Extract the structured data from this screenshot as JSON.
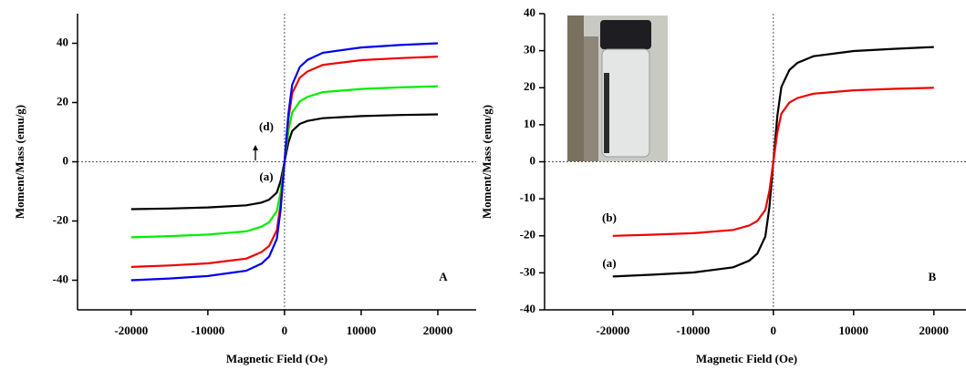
{
  "chart_data": [
    {
      "type": "line",
      "xlabel": "Magnetic Field (Oe)",
      "ylabel": "Moment/Mass (emu/g)",
      "x": [
        -20000,
        -15000,
        -10000,
        -5000,
        -3000,
        -2000,
        -1000,
        -500,
        0,
        500,
        1000,
        2000,
        3000,
        5000,
        10000,
        15000,
        20000
      ],
      "series": [
        {
          "color": "#000000",
          "values": [
            -16,
            -15.8,
            -15.4,
            -14.7,
            -13.8,
            -12.8,
            -10.4,
            -6.4,
            0,
            6.4,
            10.4,
            12.8,
            13.8,
            14.7,
            15.4,
            15.8,
            16
          ]
        },
        {
          "color": "#00ee00",
          "values": [
            -25.5,
            -25.1,
            -24.6,
            -23.5,
            -21.9,
            -20.4,
            -16.6,
            -10.2,
            0,
            10.2,
            16.6,
            20.4,
            21.9,
            23.5,
            24.6,
            25.1,
            25.5
          ]
        },
        {
          "color": "#ee0000",
          "values": [
            -35.5,
            -35,
            -34.3,
            -32.7,
            -30.5,
            -28.4,
            -23.1,
            -14.2,
            0,
            14.2,
            23.1,
            28.4,
            30.5,
            32.7,
            34.3,
            35,
            35.5
          ]
        },
        {
          "color": "#0000ee",
          "values": [
            -40,
            -39.4,
            -38.6,
            -36.8,
            -34.4,
            -32,
            -26,
            -16,
            0,
            16,
            26,
            32,
            34.4,
            36.8,
            38.6,
            39.4,
            40
          ]
        }
      ],
      "xlim": [
        -27000,
        25000
      ],
      "xticks": [
        -20000,
        -10000,
        0,
        10000,
        20000
      ],
      "ylim": [
        -50,
        50
      ],
      "yticks": [
        -40,
        -20,
        0,
        20,
        40
      ],
      "annotations": [
        "(d)",
        "(a)",
        "A"
      ]
    },
    {
      "type": "line",
      "xlabel": "Magnetic Field (Oe)",
      "ylabel": "Moment/Mass (emu/g)",
      "x": [
        -20000,
        -15000,
        -10000,
        -5000,
        -3000,
        -2000,
        -1000,
        -500,
        0,
        500,
        1000,
        2000,
        3000,
        5000,
        10000,
        15000,
        20000
      ],
      "series": [
        {
          "color": "#000000",
          "values": [
            -31,
            -30.5,
            -29.9,
            -28.5,
            -26.7,
            -24.8,
            -20.2,
            -12.4,
            0,
            12.4,
            20.2,
            24.8,
            26.7,
            28.5,
            29.9,
            30.5,
            31
          ]
        },
        {
          "color": "#ee0000",
          "values": [
            -20,
            -19.7,
            -19.3,
            -18.4,
            -17.2,
            -16,
            -13,
            -8,
            0,
            8,
            13,
            16,
            17.2,
            18.4,
            19.3,
            19.7,
            20
          ]
        }
      ],
      "xlim": [
        -28500,
        24000
      ],
      "xticks": [
        -20000,
        -10000,
        0,
        10000,
        20000
      ],
      "ylim": [
        -40,
        40
      ],
      "yticks": [
        -40,
        -30,
        -20,
        -10,
        0,
        10,
        20,
        30,
        40
      ],
      "annotations": [
        "(b)",
        "(a)",
        "B"
      ]
    }
  ]
}
